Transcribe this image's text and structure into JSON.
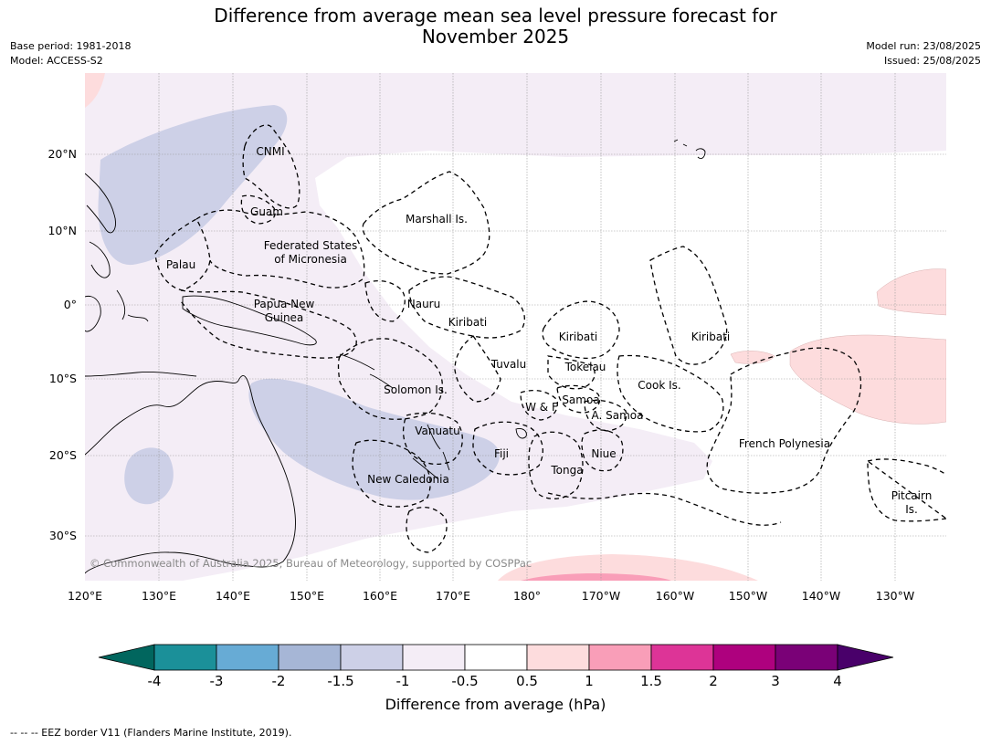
{
  "title_line1": "Difference from average mean sea level pressure forecast for",
  "title_line2": "November 2025",
  "meta_left": [
    "Base period: 1981-2018",
    "Model: ACCESS-S2"
  ],
  "meta_right": [
    "Model run: 23/08/2025",
    "Issued: 25/08/2025"
  ],
  "copyright": "© Commonwealth of Australia 2025, Bureau of Meteorology, supported by COSPPac",
  "lon_ticks": [
    "120°E",
    "130°E",
    "140°E",
    "150°E",
    "160°E",
    "170°E",
    "180°",
    "170°W",
    "160°W",
    "150°W",
    "140°W",
    "130°W"
  ],
  "lat_ticks": [
    "20°N",
    "10°N",
    "0°",
    "10°S",
    "20°S",
    "30°S"
  ],
  "region_labels": [
    {
      "text": "CNMI"
    },
    {
      "text": "Guam"
    },
    {
      "text": "Marshall Is."
    },
    {
      "text": "Federated States"
    },
    {
      "text": "of Micronesia"
    },
    {
      "text": "Palau"
    },
    {
      "text": "Nauru"
    },
    {
      "text": "Papua New"
    },
    {
      "text": "Guinea"
    },
    {
      "text": "Kiribati"
    },
    {
      "text": "Kiribati"
    },
    {
      "text": "Kiribati"
    },
    {
      "text": "Tuvalu"
    },
    {
      "text": "Tokelau"
    },
    {
      "text": "Cook Is."
    },
    {
      "text": "Solomon Is."
    },
    {
      "text": "W & F"
    },
    {
      "text": "Samoa"
    },
    {
      "text": "A. Samoa"
    },
    {
      "text": "Vanuatu"
    },
    {
      "text": "Fiji"
    },
    {
      "text": "Niue"
    },
    {
      "text": "French Polynesia"
    },
    {
      "text": "Tonga"
    },
    {
      "text": "New Caledonia"
    },
    {
      "text": "Pitcairn"
    },
    {
      "text": "Is."
    }
  ],
  "colorbar": {
    "labels": [
      "-4",
      "-3",
      "-2",
      "-1.5",
      "-1",
      "-0.5",
      "0.5",
      "1",
      "1.5",
      "2",
      "3",
      "4"
    ],
    "colors": [
      "#1b9099",
      "#67abd5",
      "#a6b6d6",
      "#cdd0e7",
      "#f4edf6",
      "#ffffff",
      "#fddcdd",
      "#f99eb8",
      "#dd3497",
      "#ae017e",
      "#7a0177"
    ],
    "under_color": "#01665e",
    "over_color": "#49006a",
    "label": "Difference from average (hPa)"
  },
  "footnote": "--  --  -- EEZ border V11 (Flanders Marine Institute, 2019).",
  "colors": {
    "light_blue": "#cdd0e7",
    "lighter_lilac": "#f4edf6",
    "light_pink": "#fddcdd",
    "pink": "#f99eb8"
  }
}
